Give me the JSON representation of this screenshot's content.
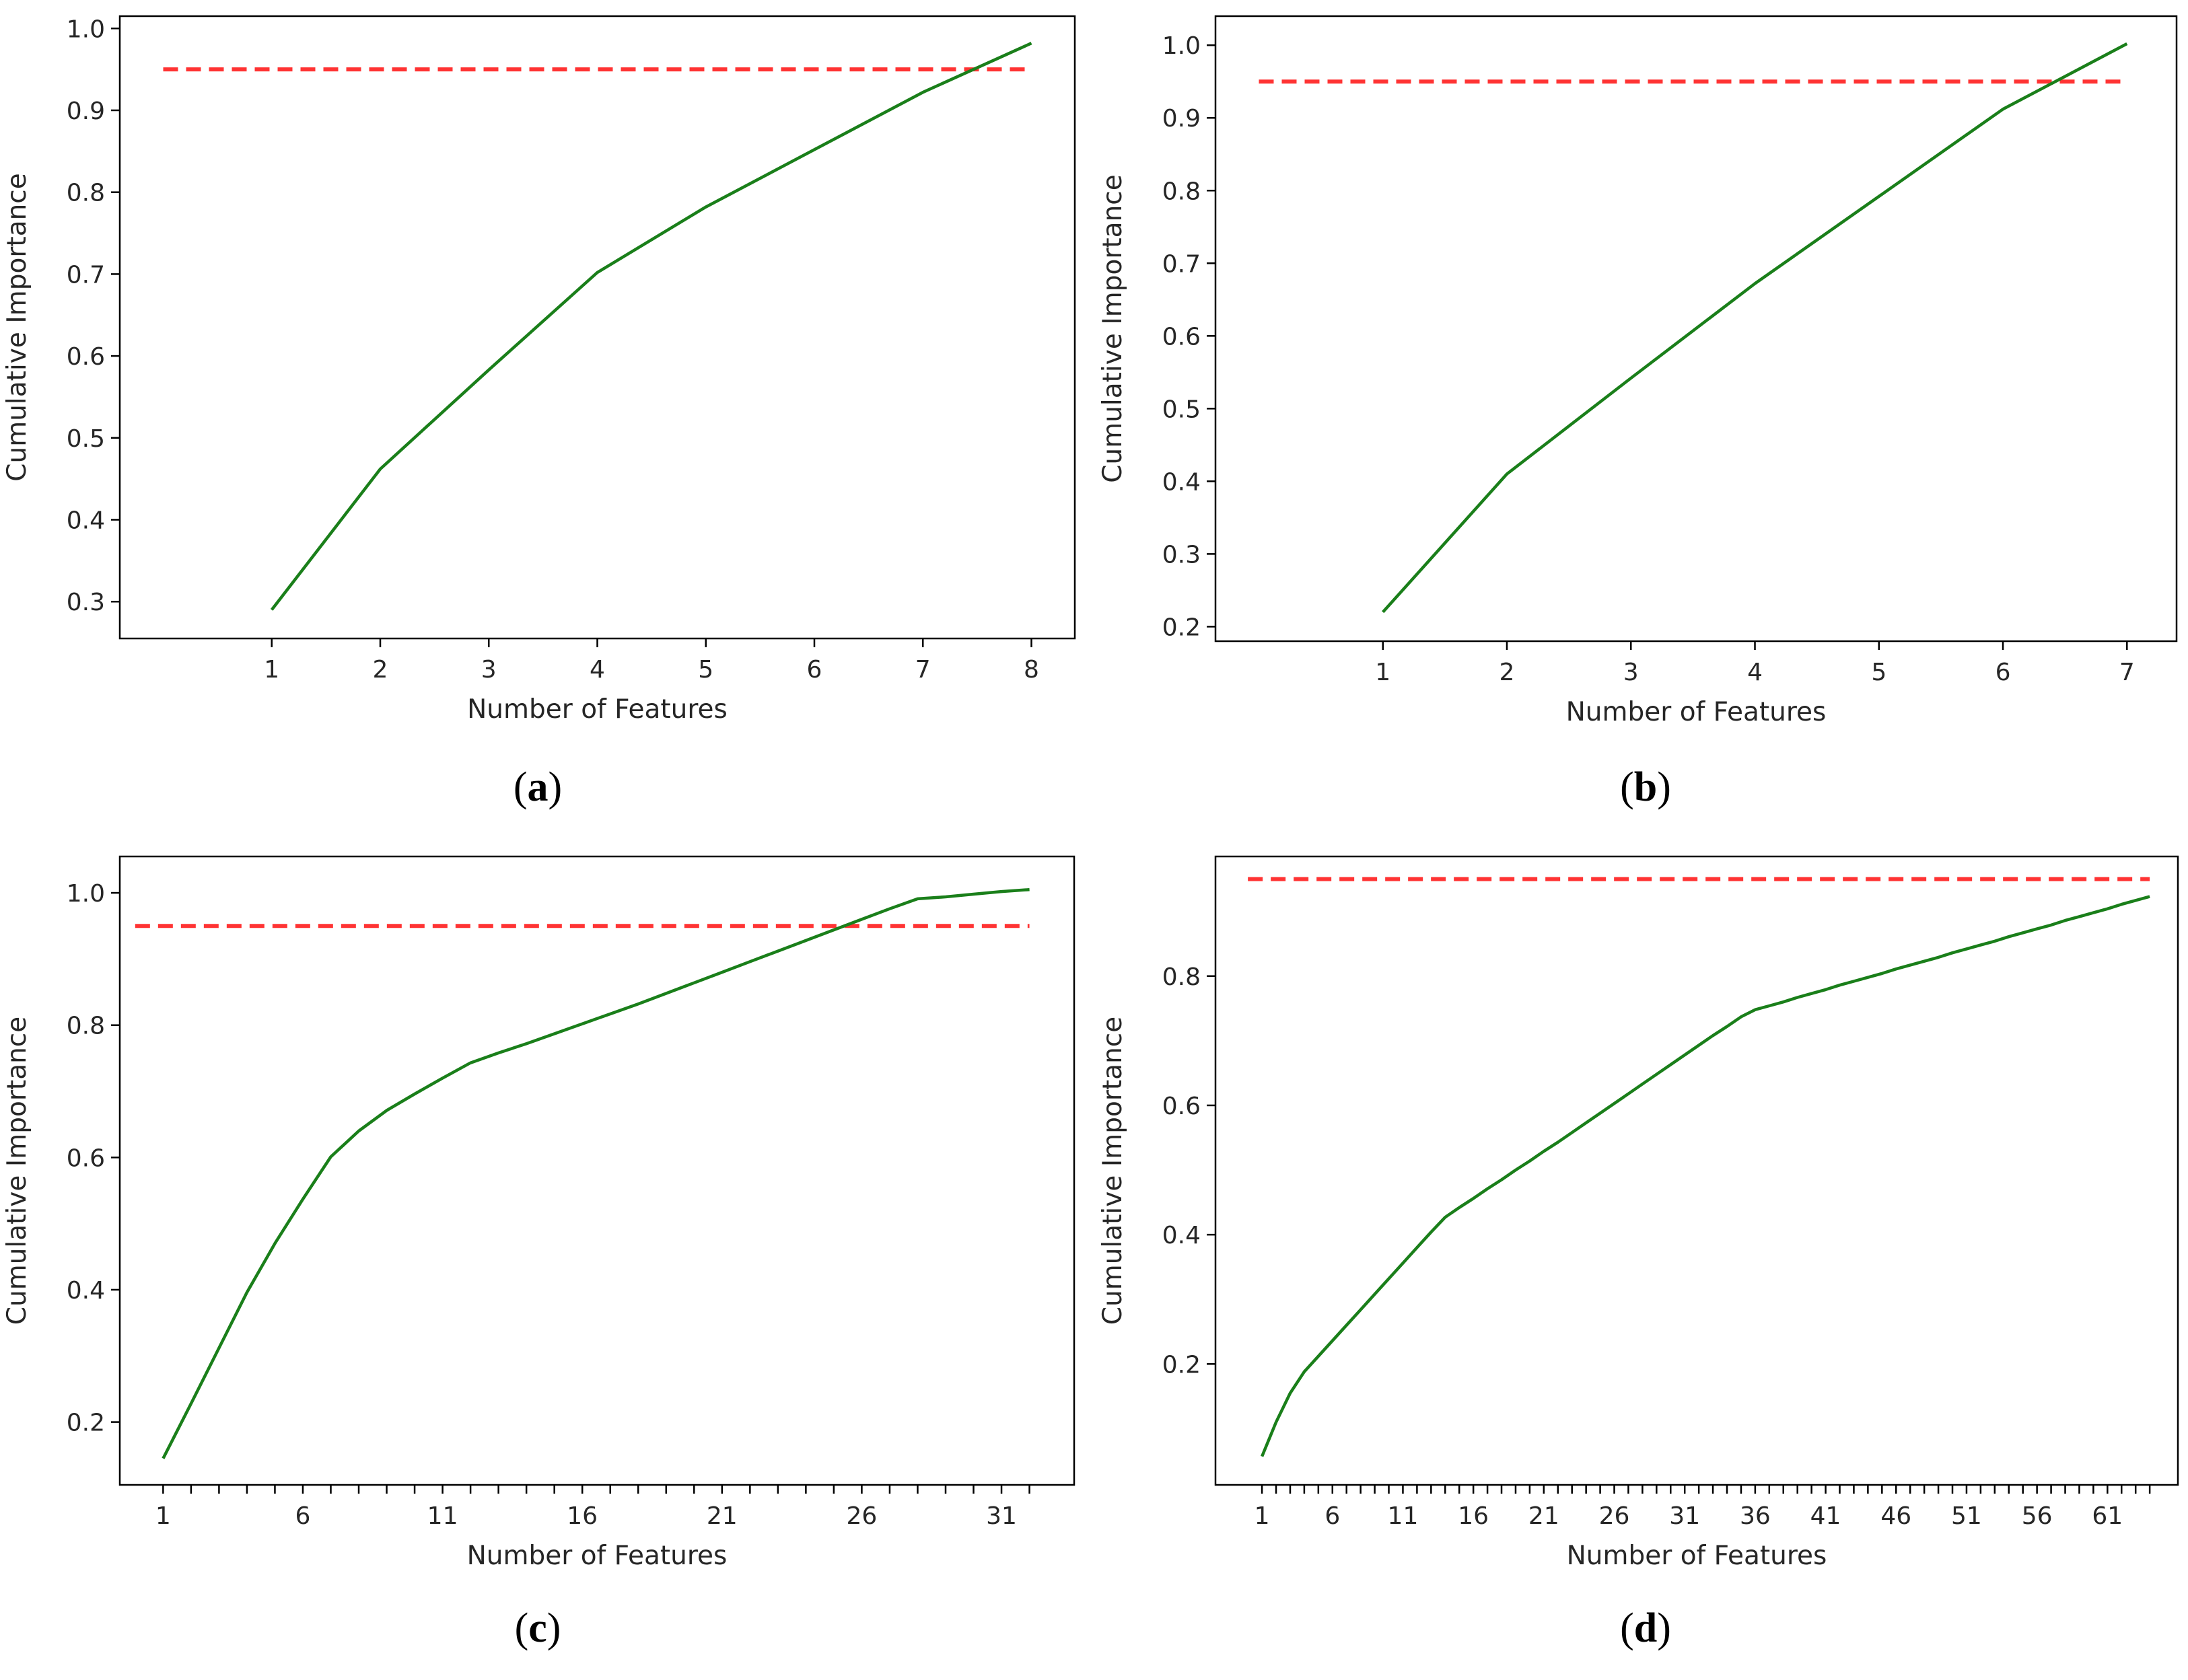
{
  "colors": {
    "line": "#1a7f1a",
    "threshold": "#ff3333",
    "axis": "#000000",
    "text": "#262626"
  },
  "chart_data": [
    {
      "id": "a",
      "caption_letter": "a",
      "type": "line",
      "xlabel": "Number of Features",
      "ylabel": "Cumulative Importance",
      "xlim": [
        -0.4,
        8.4
      ],
      "ylim": [
        0.255,
        1.015
      ],
      "xticks": [
        1,
        2,
        3,
        4,
        5,
        6,
        7,
        8
      ],
      "xtick_labels": [
        "1",
        "2",
        "3",
        "4",
        "5",
        "6",
        "7",
        "8"
      ],
      "minor_xticks": [],
      "yticks": [
        0.3,
        0.4,
        0.5,
        0.6,
        0.7,
        0.8,
        0.9,
        1.0
      ],
      "ytick_labels": [
        "0.3",
        "0.4",
        "0.5",
        "0.6",
        "0.7",
        "0.8",
        "0.9",
        "1.0"
      ],
      "threshold": {
        "value": 0.95,
        "x_range": [
          0,
          8
        ]
      },
      "series": [
        {
          "name": "cumulative",
          "x": [
            1,
            2,
            3,
            4,
            5,
            6,
            7,
            8
          ],
          "y": [
            0.29,
            0.462,
            0.583,
            0.702,
            0.782,
            0.852,
            0.922,
            0.982
          ]
        }
      ]
    },
    {
      "id": "b",
      "caption_letter": "b",
      "type": "line",
      "xlabel": "Number of Features",
      "ylabel": "Cumulative Importance",
      "xlim": [
        -0.35,
        7.4
      ],
      "ylim": [
        0.18,
        1.04
      ],
      "xticks": [
        1,
        2,
        3,
        4,
        5,
        6,
        7
      ],
      "xtick_labels": [
        "1",
        "2",
        "3",
        "4",
        "5",
        "6",
        "7"
      ],
      "minor_xticks": [],
      "yticks": [
        0.2,
        0.3,
        0.4,
        0.5,
        0.6,
        0.7,
        0.8,
        0.9,
        1.0
      ],
      "ytick_labels": [
        "0.2",
        "0.3",
        "0.4",
        "0.5",
        "0.6",
        "0.7",
        "0.8",
        "0.9",
        "1.0"
      ],
      "threshold": {
        "value": 0.95,
        "x_range": [
          0,
          7
        ]
      },
      "series": [
        {
          "name": "cumulative",
          "x": [
            1,
            2,
            3,
            4,
            5,
            6,
            7
          ],
          "y": [
            0.22,
            0.41,
            0.542,
            0.672,
            0.792,
            0.912,
            1.002
          ]
        }
      ]
    },
    {
      "id": "c",
      "caption_letter": "c",
      "type": "line",
      "xlabel": "Number of Features",
      "ylabel": "Cumulative Importance",
      "xlim": [
        -0.55,
        33.6
      ],
      "ylim": [
        0.105,
        1.055
      ],
      "xticks": [
        1,
        6,
        11,
        16,
        21,
        26,
        31
      ],
      "xtick_labels": [
        "1",
        "6",
        "11",
        "16",
        "21",
        "26",
        "31"
      ],
      "minor_xticks": [
        2,
        3,
        4,
        5,
        7,
        8,
        9,
        10,
        12,
        13,
        14,
        15,
        17,
        18,
        19,
        20,
        22,
        23,
        24,
        25,
        27,
        28,
        29,
        30,
        32
      ],
      "yticks": [
        0.2,
        0.4,
        0.6,
        0.8,
        1.0
      ],
      "ytick_labels": [
        "0.2",
        "0.4",
        "0.6",
        "0.8",
        "1.0"
      ],
      "threshold": {
        "value": 0.95,
        "x_range": [
          0,
          32
        ]
      },
      "series": [
        {
          "name": "cumulative",
          "x": [
            1,
            2,
            3,
            4,
            5,
            6,
            7,
            8,
            9,
            10,
            11,
            12,
            13,
            14,
            15,
            16,
            17,
            18,
            19,
            20,
            21,
            22,
            23,
            24,
            25,
            26,
            27,
            28,
            29,
            30,
            31,
            32
          ],
          "y": [
            0.145,
            0.228,
            0.312,
            0.396,
            0.47,
            0.537,
            0.601,
            0.64,
            0.671,
            0.696,
            0.72,
            0.743,
            0.758,
            0.772,
            0.787,
            0.802,
            0.817,
            0.832,
            0.848,
            0.864,
            0.88,
            0.896,
            0.912,
            0.928,
            0.944,
            0.96,
            0.976,
            0.991,
            0.994,
            0.998,
            1.002,
            1.005
          ]
        }
      ]
    },
    {
      "id": "d",
      "caption_letter": "d",
      "type": "line",
      "xlabel": "Number of Features",
      "ylabel": "Cumulative Importance",
      "xlim": [
        -2.3,
        66.0
      ],
      "ylim": [
        0.013,
        0.985
      ],
      "xticks": [
        1,
        6,
        11,
        16,
        21,
        26,
        31,
        36,
        41,
        46,
        51,
        56,
        61
      ],
      "xtick_labels": [
        "1",
        "6",
        "11",
        "16",
        "21",
        "26",
        "31",
        "36",
        "41",
        "46",
        "51",
        "56",
        "61"
      ],
      "minor_xticks": [
        2,
        3,
        4,
        5,
        7,
        8,
        9,
        10,
        12,
        13,
        14,
        15,
        17,
        18,
        19,
        20,
        22,
        23,
        24,
        25,
        27,
        28,
        29,
        30,
        32,
        33,
        34,
        35,
        37,
        38,
        39,
        40,
        42,
        43,
        44,
        45,
        47,
        48,
        49,
        50,
        52,
        53,
        54,
        55,
        57,
        58,
        59,
        60,
        62,
        63,
        64
      ],
      "yticks": [
        0.2,
        0.4,
        0.6,
        0.8
      ],
      "ytick_labels": [
        "0.2",
        "0.4",
        "0.6",
        "0.8"
      ],
      "threshold": {
        "value": 0.95,
        "x_range": [
          0,
          64
        ]
      },
      "series": [
        {
          "name": "cumulative",
          "x": [
            1,
            2,
            3,
            4,
            5,
            6,
            7,
            8,
            9,
            10,
            11,
            12,
            13,
            14,
            15,
            16,
            17,
            18,
            19,
            20,
            21,
            22,
            23,
            24,
            25,
            26,
            27,
            28,
            29,
            30,
            31,
            32,
            33,
            34,
            35,
            36,
            37,
            38,
            39,
            40,
            41,
            42,
            43,
            44,
            45,
            46,
            47,
            48,
            49,
            50,
            51,
            52,
            53,
            54,
            55,
            56,
            57,
            58,
            59,
            60,
            61,
            62,
            63,
            64
          ],
          "y": [
            0.057,
            0.11,
            0.155,
            0.188,
            0.212,
            0.236,
            0.26,
            0.284,
            0.308,
            0.332,
            0.356,
            0.38,
            0.404,
            0.427,
            0.442,
            0.456,
            0.471,
            0.485,
            0.5,
            0.514,
            0.529,
            0.543,
            0.558,
            0.573,
            0.588,
            0.603,
            0.618,
            0.633,
            0.648,
            0.663,
            0.678,
            0.693,
            0.708,
            0.722,
            0.737,
            0.748,
            0.754,
            0.76,
            0.767,
            0.773,
            0.779,
            0.786,
            0.792,
            0.798,
            0.804,
            0.811,
            0.817,
            0.823,
            0.829,
            0.836,
            0.842,
            0.848,
            0.854,
            0.861,
            0.867,
            0.873,
            0.879,
            0.886,
            0.892,
            0.898,
            0.904,
            0.911,
            0.917,
            0.923
          ]
        }
      ]
    }
  ]
}
